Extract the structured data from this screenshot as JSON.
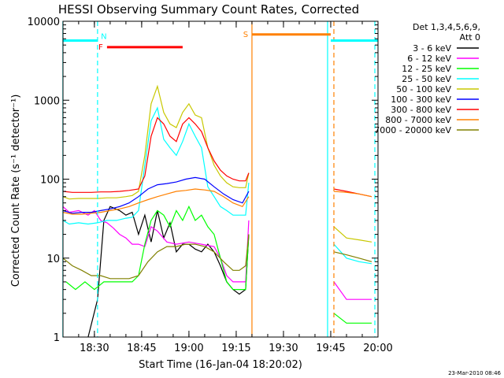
{
  "chart_data": {
    "type": "line",
    "title": "HESSI Observing Summary Count Rates, Corrected",
    "xlabel": "Start Time (16-Jan-04 18:20:02)",
    "ylabel": "Corrected Count Rate (s⁻¹ detector⁻¹)",
    "y_scale": "log",
    "xlim": [
      "18:20:02",
      "20:00:00"
    ],
    "ylim": [
      1,
      10000
    ],
    "x_ticks": [
      "18:30",
      "18:45",
      "19:00",
      "19:15",
      "19:30",
      "19:45",
      "20:00"
    ],
    "y_ticks": [
      "1",
      "10",
      "100",
      "1000",
      "10000"
    ],
    "legend_header": [
      "Det 1,3,4,5,6,9,",
      "Att 0"
    ],
    "legend_position": "right",
    "timestamp": "23-Mar-2010 08:46",
    "series": [
      {
        "name": "3 - 6 keV",
        "color": "#000000",
        "x": [
          "18:28",
          "18:31",
          "18:33",
          "18:35",
          "18:38",
          "18:40",
          "18:42",
          "18:44",
          "18:46",
          "18:48",
          "18:50",
          "18:52",
          "18:54",
          "18:56",
          "18:58",
          "19:00",
          "19:02",
          "19:04",
          "19:06",
          "19:08",
          "19:10",
          "19:12",
          "19:14",
          "19:16",
          "19:18",
          "19:19"
        ],
        "values": [
          1,
          3,
          30,
          45,
          40,
          35,
          38,
          20,
          35,
          16,
          40,
          18,
          28,
          12,
          15,
          15,
          13,
          12,
          15,
          12,
          8,
          5,
          4,
          3.5,
          4,
          20
        ]
      },
      {
        "name": "6 - 12 keV",
        "color": "#ff00ff",
        "x": [
          "18:20",
          "18:22",
          "18:25",
          "18:28",
          "18:30",
          "18:32",
          "18:34",
          "18:36",
          "18:38",
          "18:40",
          "18:42",
          "18:44",
          "18:46",
          "18:48",
          "18:50",
          "18:53",
          "18:56",
          "19:00",
          "19:04",
          "19:08",
          "19:10",
          "19:12",
          "19:14",
          "19:16",
          "19:18",
          "19:19",
          "19:46",
          "19:50",
          "19:54",
          "19:58"
        ],
        "values": [
          45,
          38,
          40,
          35,
          40,
          30,
          28,
          24,
          20,
          18,
          15,
          15,
          14,
          25,
          22,
          16,
          15,
          16,
          15,
          14,
          10,
          6,
          5,
          5,
          5,
          30,
          5,
          3,
          3,
          3
        ]
      },
      {
        "name": "12 - 25 keV",
        "color": "#00ff00",
        "x": [
          "18:21",
          "18:24",
          "18:27",
          "18:30",
          "18:33",
          "18:36",
          "18:38",
          "18:40",
          "18:42",
          "18:44",
          "18:46",
          "18:48",
          "18:50",
          "18:52",
          "18:54",
          "18:56",
          "18:58",
          "19:00",
          "19:02",
          "19:04",
          "19:06",
          "19:08",
          "19:10",
          "19:12",
          "19:14",
          "19:16",
          "19:18",
          "19:19",
          "19:46",
          "19:50",
          "19:54",
          "19:58"
        ],
        "values": [
          5,
          4,
          5,
          4,
          5,
          5,
          5,
          5,
          5,
          6,
          15,
          30,
          40,
          35,
          25,
          40,
          30,
          45,
          30,
          35,
          25,
          20,
          10,
          5,
          4,
          4,
          4,
          20,
          2,
          1.5,
          1.5,
          1.5
        ]
      },
      {
        "name": "25 - 50 keV",
        "color": "#00ffff",
        "x": [
          "18:20",
          "18:22",
          "18:25",
          "18:28",
          "18:31",
          "18:34",
          "18:37",
          "18:40",
          "18:42",
          "18:44",
          "18:46",
          "18:48",
          "18:50",
          "18:52",
          "18:54",
          "18:56",
          "18:58",
          "19:00",
          "19:02",
          "19:04",
          "19:06",
          "19:08",
          "19:10",
          "19:12",
          "19:14",
          "19:16",
          "19:18",
          "19:19",
          "19:46",
          "19:50",
          "19:54",
          "19:58"
        ],
        "values": [
          30,
          27,
          28,
          27,
          28,
          30,
          30,
          32,
          33,
          40,
          150,
          550,
          800,
          320,
          250,
          200,
          300,
          500,
          350,
          250,
          80,
          60,
          45,
          40,
          35,
          35,
          35,
          90,
          15,
          10,
          9,
          8.5
        ]
      },
      {
        "name": "50 - 100 keV",
        "color": "#c8c800",
        "x": [
          "18:20",
          "18:22",
          "18:25",
          "18:28",
          "18:31",
          "18:34",
          "18:37",
          "18:40",
          "18:42",
          "18:44",
          "18:46",
          "18:48",
          "18:50",
          "18:52",
          "18:54",
          "18:56",
          "18:58",
          "19:00",
          "19:02",
          "19:04",
          "19:06",
          "19:08",
          "19:10",
          "19:12",
          "19:14",
          "19:16",
          "19:18",
          "19:19",
          "19:46",
          "19:50",
          "19:54",
          "19:58"
        ],
        "values": [
          60,
          56,
          57,
          57,
          57,
          58,
          58,
          60,
          62,
          70,
          200,
          900,
          1500,
          700,
          500,
          450,
          700,
          900,
          650,
          600,
          250,
          150,
          110,
          90,
          80,
          78,
          78,
          120,
          25,
          18,
          17,
          16
        ]
      },
      {
        "name": "100 - 300 keV",
        "color": "#0000ff",
        "x": [
          "18:20",
          "18:23",
          "18:26",
          "18:29",
          "18:32",
          "18:35",
          "18:38",
          "18:41",
          "18:44",
          "18:47",
          "18:50",
          "18:53",
          "18:56",
          "18:59",
          "19:02",
          "19:05",
          "19:08",
          "19:11",
          "19:14",
          "19:17",
          "19:19"
        ],
        "values": [
          40,
          37,
          38,
          38,
          40,
          42,
          45,
          50,
          60,
          75,
          85,
          88,
          92,
          100,
          105,
          100,
          80,
          65,
          55,
          50,
          70
        ]
      },
      {
        "name": "300 - 800 keV",
        "color": "#ff0000",
        "x": [
          "18:20",
          "18:23",
          "18:26",
          "18:29",
          "18:32",
          "18:35",
          "18:38",
          "18:41",
          "18:44",
          "18:46",
          "18:48",
          "18:50",
          "18:52",
          "18:54",
          "18:56",
          "18:58",
          "19:00",
          "19:02",
          "19:04",
          "19:06",
          "19:08",
          "19:10",
          "19:12",
          "19:14",
          "19:16",
          "19:18",
          "19:19",
          "19:46",
          "19:50",
          "19:54",
          "19:58"
        ],
        "values": [
          70,
          68,
          68,
          68,
          69,
          69,
          70,
          72,
          75,
          110,
          350,
          600,
          500,
          350,
          300,
          500,
          600,
          500,
          400,
          250,
          170,
          130,
          110,
          100,
          95,
          95,
          120,
          75,
          70,
          65,
          60
        ]
      },
      {
        "name": "800 - 7000 keV",
        "color": "#ff8000",
        "x": [
          "18:20",
          "18:23",
          "18:26",
          "18:29",
          "18:32",
          "18:35",
          "18:38",
          "18:41",
          "18:44",
          "18:47",
          "18:50",
          "18:53",
          "18:56",
          "18:59",
          "19:02",
          "19:05",
          "19:08",
          "19:11",
          "19:14",
          "19:17",
          "19:19",
          "19:46",
          "19:50",
          "19:54",
          "19:58"
        ],
        "values": [
          38,
          36,
          36,
          37,
          38,
          40,
          42,
          45,
          50,
          55,
          60,
          65,
          70,
          72,
          75,
          73,
          70,
          60,
          50,
          45,
          60,
          70,
          68,
          65,
          60
        ]
      },
      {
        "name": "7000 - 20000 keV",
        "color": "#808000",
        "x": [
          "18:20",
          "18:23",
          "18:26",
          "18:29",
          "18:32",
          "18:35",
          "18:38",
          "18:41",
          "18:44",
          "18:47",
          "18:50",
          "18:53",
          "18:56",
          "18:59",
          "19:02",
          "19:05",
          "19:08",
          "19:11",
          "19:14",
          "19:16",
          "19:18",
          "19:19",
          "19:46",
          "19:50",
          "19:54",
          "19:58"
        ],
        "values": [
          10,
          8,
          7,
          6,
          6,
          5.5,
          5.5,
          5.5,
          6,
          9,
          12,
          14,
          14,
          15,
          15,
          14,
          12,
          9,
          7,
          7,
          8,
          20,
          12,
          11,
          10,
          9
        ]
      }
    ],
    "attenuator_state_bars": [
      {
        "label": "N",
        "color": "#00ffff",
        "x_start": "18:20",
        "x_end": "18:31",
        "y": 5700
      },
      {
        "label": "F",
        "color": "#ff0000",
        "x_start": "18:34",
        "x_end": "18:58",
        "y": 4700
      },
      {
        "label": "S",
        "color": "#ff8000",
        "x_start": "19:20",
        "x_end": "19:45",
        "y": 6800
      },
      {
        "label": "",
        "color": "#00ffff",
        "x_start": "19:45",
        "x_end": "20:00",
        "y": 5700
      }
    ],
    "vertical_markers": [
      {
        "x": "18:20",
        "color": "#00ffff",
        "style": "solid"
      },
      {
        "x": "18:31",
        "color": "#00ffff",
        "style": "dashed"
      },
      {
        "x": "19:20",
        "color": "#ff8000",
        "style": "solid"
      },
      {
        "x": "19:44",
        "color": "#00ffff",
        "style": "solid"
      },
      {
        "x": "19:46",
        "color": "#ff8000",
        "style": "dashed"
      },
      {
        "x": "19:59",
        "color": "#00ffff",
        "style": "dashed"
      }
    ]
  }
}
